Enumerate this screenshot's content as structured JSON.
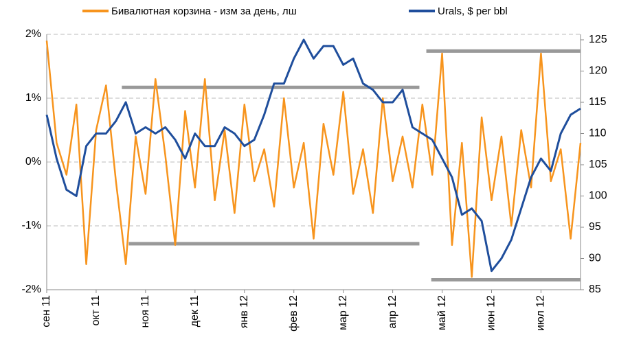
{
  "chart_data": {
    "type": "line",
    "categories": [
      "сен 11",
      null,
      null,
      null,
      null,
      "окт 11",
      null,
      null,
      null,
      null,
      "ноя 11",
      null,
      null,
      null,
      null,
      "дек 11",
      null,
      null,
      null,
      null,
      "янв 12",
      null,
      null,
      null,
      null,
      "фев 12",
      null,
      null,
      null,
      null,
      "мар 12",
      null,
      null,
      null,
      null,
      "апр 12",
      null,
      null,
      null,
      null,
      "май 12",
      null,
      null,
      null,
      null,
      "июн 12",
      null,
      null,
      null,
      null,
      "июл 12",
      null,
      null,
      null,
      null
    ],
    "series": [
      {
        "name": "Бивалютная корзина - изм за день, лш",
        "color": "#f7941d",
        "axis": "y",
        "values": [
          1.9,
          0.3,
          -0.2,
          0.9,
          -1.6,
          0.5,
          1.2,
          -0.3,
          -1.6,
          0.4,
          -0.5,
          1.3,
          0.1,
          -1.3,
          0.8,
          -0.4,
          1.3,
          -0.6,
          0.5,
          -0.8,
          0.9,
          -0.3,
          0.2,
          -0.7,
          1.0,
          -0.4,
          0.3,
          -1.2,
          0.6,
          -0.2,
          1.1,
          -0.5,
          0.2,
          -0.8,
          1.0,
          -0.3,
          0.4,
          -0.4,
          0.9,
          -0.2,
          1.7,
          -1.3,
          0.3,
          -1.8,
          0.7,
          -0.6,
          0.4,
          -1.0,
          0.5,
          -0.4,
          1.7,
          -0.3,
          0.2,
          -1.2,
          0.3
        ]
      },
      {
        "name": "Urals, $ per bbl",
        "color": "#1f4e9c",
        "axis": "y2",
        "values": [
          113,
          106,
          101,
          100,
          108,
          110,
          110,
          112,
          115,
          110,
          111,
          110,
          111,
          109,
          106,
          110,
          108,
          108,
          111,
          110,
          108,
          109,
          113,
          118,
          118,
          122,
          125,
          122,
          124,
          124,
          121,
          122,
          118,
          117,
          115,
          115,
          117,
          111,
          110,
          109,
          106,
          103,
          97,
          98,
          96,
          88,
          90,
          93,
          98,
          103,
          106,
          104,
          110,
          113,
          114
        ]
      }
    ],
    "reference_lines": [
      {
        "axis": "y",
        "value": 1.17,
        "from": 7.6,
        "to": 37.7,
        "color": "#999999"
      },
      {
        "axis": "y",
        "value": -1.28,
        "from": 8.3,
        "to": 37.7,
        "color": "#999999"
      },
      {
        "axis": "y2",
        "value": 123.2,
        "from": 38.4,
        "to": 54,
        "color": "#999999"
      },
      {
        "axis": "y2",
        "value": 86.6,
        "from": 38.9,
        "to": 54,
        "color": "#999999"
      }
    ],
    "ylim": [
      -2,
      2
    ],
    "yticks": [
      {
        "value": -2,
        "label": "-2%"
      },
      {
        "value": -1,
        "label": "-1%"
      },
      {
        "value": 0,
        "label": "0%"
      },
      {
        "value": 1,
        "label": "1%"
      },
      {
        "value": 2,
        "label": "2%"
      }
    ],
    "y2lim": [
      85,
      125
    ],
    "y2ticks": [
      85,
      90,
      95,
      100,
      105,
      110,
      115,
      120,
      125
    ],
    "grid": true,
    "legend": "top"
  }
}
